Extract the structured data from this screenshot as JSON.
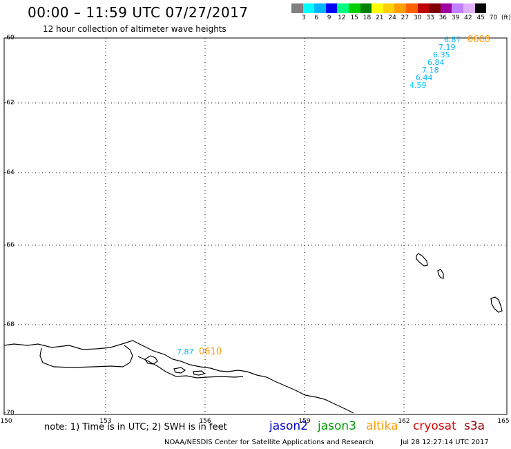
{
  "title": "00:00 – 11:59 UTC 07/27/2017",
  "subtitle": "12 hour collection of altimeter wave heights",
  "colorbar": {
    "colors": [
      "#808080",
      "#00ffff",
      "#00b4ff",
      "#0000ff",
      "#00ff80",
      "#00d000",
      "#008000",
      "#ffff00",
      "#ffd000",
      "#ffa000",
      "#ff6000",
      "#c00000",
      "#800000",
      "#a000a0",
      "#c080ff",
      "#e0b0ff",
      "#000000"
    ],
    "labels": [
      "3",
      "6",
      "9",
      "12",
      "15",
      "18",
      "21",
      "24",
      "27",
      "30",
      "33",
      "36",
      "39",
      "42",
      "45",
      "70",
      "(ft)"
    ]
  },
  "axes": {
    "lat_labels": [
      "-60",
      "-62",
      "-64",
      "-66",
      "-68",
      "-70"
    ],
    "lon_labels": [
      "150",
      "153",
      "156",
      "159",
      "162",
      "165"
    ]
  },
  "observations": {
    "track_0608": {
      "time": "0608",
      "values": [
        "6.87",
        "7.19",
        "6.35",
        "6.84",
        "7.18",
        "6.44",
        "4.59"
      ]
    },
    "track_0610": {
      "time": "0610",
      "values": [
        "7.87"
      ]
    }
  },
  "note": "note: 1) Time is in UTC; 2) SWH is in feet",
  "satellites": [
    {
      "name": "jason2",
      "color": "#0000cc"
    },
    {
      "name": "jason3",
      "color": "#009900"
    },
    {
      "name": "altika",
      "color": "#ff9900"
    },
    {
      "name": "cryosat",
      "color": "#dd0000"
    },
    {
      "name": "s3a",
      "color": "#990000"
    }
  ],
  "footer": "NOAA/NESDIS Center for Satellite Applications and Research",
  "footer_date": "Jul 28 12:27:14 UTC 2017"
}
